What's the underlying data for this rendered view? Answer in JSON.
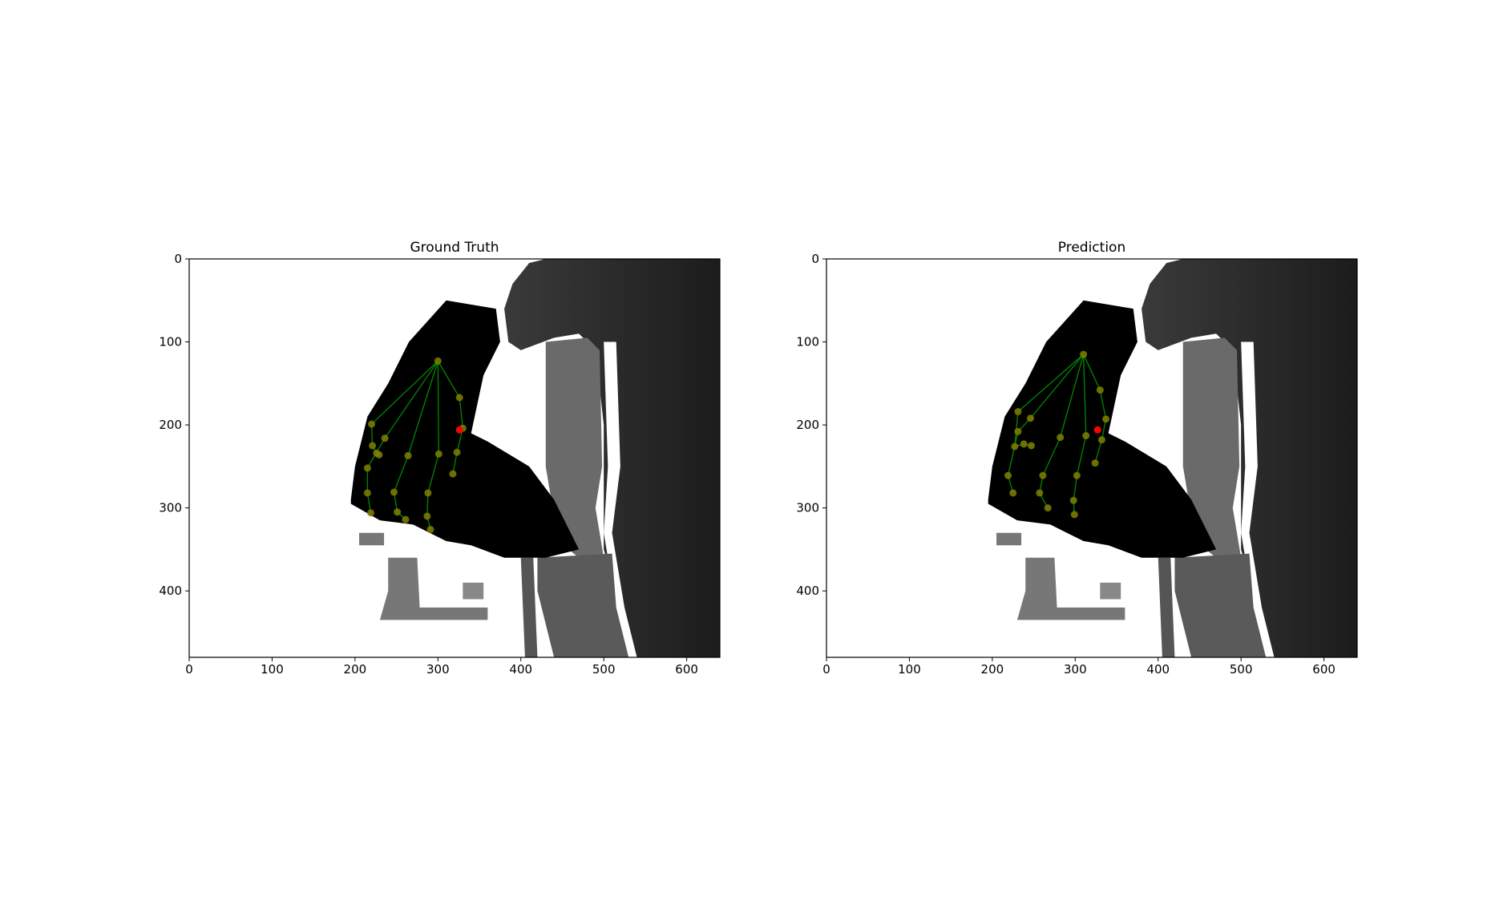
{
  "chart_data": [
    {
      "type": "scatter",
      "title": "Ground Truth",
      "xlim": [
        0,
        640
      ],
      "ylim": [
        480,
        0
      ],
      "xticks": [
        0,
        100,
        200,
        300,
        400,
        500,
        600
      ],
      "yticks": [
        0,
        100,
        200,
        300,
        400
      ],
      "grid": false,
      "marker_color": "#808000",
      "bone_color": "#008000",
      "points": {
        "x": [
          300,
          326,
          330,
          323,
          318,
          301,
          288,
          287,
          291,
          264,
          247,
          251,
          261,
          236,
          215,
          215,
          219,
          220,
          221,
          226,
          229
        ],
        "y": [
          123,
          167,
          204,
          233,
          259,
          235,
          282,
          310,
          326,
          237,
          281,
          305,
          314,
          216,
          252,
          282,
          306,
          199,
          225,
          234,
          236
        ]
      },
      "highlight": {
        "color": "#ff0000",
        "x": [
          326
        ],
        "y": [
          206
        ]
      }
    },
    {
      "type": "scatter",
      "title": "Prediction",
      "xlim": [
        0,
        640
      ],
      "ylim": [
        480,
        0
      ],
      "xticks": [
        0,
        100,
        200,
        300,
        400,
        500,
        600
      ],
      "yticks": [
        0,
        100,
        200,
        300,
        400
      ],
      "grid": false,
      "marker_color": "#808000",
      "bone_color": "#008000",
      "points": {
        "x": [
          310,
          330,
          337,
          332,
          324,
          313,
          302,
          298,
          299,
          282,
          261,
          257,
          267,
          246,
          231,
          219,
          225,
          231,
          227,
          238,
          247
        ],
        "y": [
          115,
          158,
          193,
          218,
          246,
          213,
          261,
          291,
          308,
          215,
          261,
          282,
          300,
          192,
          208,
          261,
          282,
          184,
          226,
          223,
          225
        ]
      },
      "highlight": {
        "color": "#ff0000",
        "x": [
          327
        ],
        "y": [
          206
        ]
      }
    }
  ]
}
